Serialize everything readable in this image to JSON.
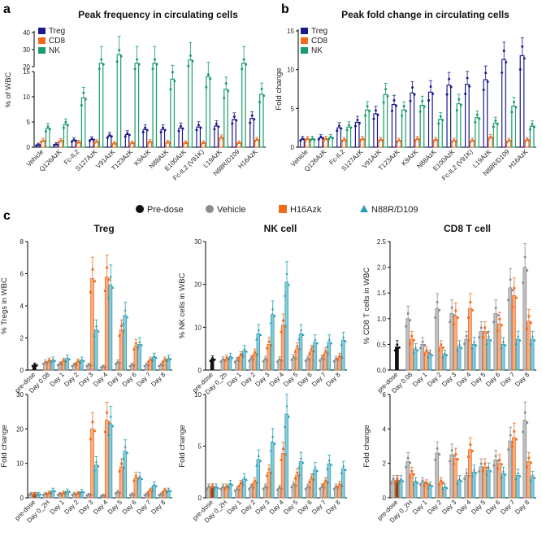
{
  "colors": {
    "treg": "#1a1a8c",
    "cd8": "#f26b1d",
    "nk": "#1a9c6b",
    "predose": "#111111",
    "vehicle": "#8c8c8c",
    "h16": "#f26b1d",
    "n88": "#2a9fb8"
  },
  "chart_data": [
    {
      "id": "a",
      "type": "bar",
      "panel_label": "a",
      "title": "Peak frequency in circulating cells",
      "ylabel": "% of WBC",
      "categories": [
        "Vehicle",
        "Q126AzK",
        "Fc-IL2",
        "S127AzK",
        "V91AzK",
        "T123AzK",
        "K9AzK",
        "N88AzK",
        "E100AzK",
        "Fc-IL2 (V91K)",
        "L19AzK",
        "N88R/D109",
        "H16AzK"
      ],
      "legend": [
        "Treg",
        "CD8",
        "NK"
      ],
      "y_axis_broken": true,
      "ylim_lower": [
        0,
        15
      ],
      "ylim_upper": [
        20,
        40
      ],
      "yticks_lower": [
        0,
        5,
        10,
        15
      ],
      "yticks_upper": [
        20,
        30,
        40
      ],
      "series": [
        {
          "name": "Treg",
          "values": [
            0.4,
            0.5,
            1.3,
            1.5,
            2.2,
            2.5,
            3.5,
            3.5,
            3.8,
            4.0,
            4.2,
            5.5,
            5.7
          ]
        },
        {
          "name": "CD8",
          "values": [
            1.2,
            1.2,
            0.9,
            1.0,
            0.7,
            0.8,
            1.0,
            0.9,
            0.8,
            0.8,
            1.8,
            0.8,
            1.4
          ]
        },
        {
          "name": "NK",
          "values": [
            3.7,
            4.5,
            9.8,
            22,
            27,
            22,
            22,
            13.5,
            24,
            14,
            11.5,
            22,
            10.5
          ]
        }
      ]
    },
    {
      "id": "b",
      "type": "bar",
      "panel_label": "b",
      "title": "Peak fold change in circulating cells",
      "ylabel": "Fold change",
      "categories": [
        "Vehicle",
        "Q126AzK",
        "Fc-IL2",
        "S127AzK",
        "V91AzK",
        "T123AzK",
        "K9AzK",
        "N88AzK",
        "E100AzK",
        "Fc-IL2 (V91K)",
        "L19AzK",
        "N88R/D109",
        "H16AzK"
      ],
      "legend": [
        "Treg",
        "CD8",
        "NK"
      ],
      "ylim": [
        0,
        15
      ],
      "yticks": [
        0,
        5,
        10,
        15
      ],
      "series": [
        {
          "name": "Treg",
          "values": [
            1.0,
            1.2,
            2.5,
            3.2,
            4.3,
            5.5,
            7.0,
            7.1,
            8.0,
            8.1,
            8.7,
            11.3,
            11.8
          ]
        },
        {
          "name": "CD8",
          "values": [
            1.0,
            1.0,
            0.9,
            1.0,
            0.9,
            0.8,
            1.0,
            0.9,
            0.8,
            0.8,
            1.2,
            0.8,
            0.9
          ]
        },
        {
          "name": "NK",
          "values": [
            1.0,
            1.2,
            2.6,
            4.8,
            6.8,
            4.8,
            5.4,
            3.6,
            5.6,
            3.8,
            3.1,
            5.3,
            2.7
          ]
        }
      ]
    },
    {
      "id": "c1",
      "type": "bar",
      "panel_label": "c",
      "title": "Treg",
      "ylabel": "% Tregs in WBC",
      "categories": [
        "pre-dose",
        "Day 0.08",
        "Day 1",
        "Day 2",
        "Day 3",
        "Day 4",
        "Day 5",
        "Day 6",
        "Day 7",
        "Day 8"
      ],
      "ylim": [
        0,
        8
      ],
      "yticks": [
        0,
        2,
        4,
        6,
        8
      ],
      "series": [
        {
          "name": "Pre-dose",
          "values": [
            0.3,
            null,
            null,
            null,
            null,
            null,
            null,
            null,
            null,
            null
          ]
        },
        {
          "name": "Vehicle",
          "values": [
            null,
            0.45,
            0.35,
            0.3,
            0.3,
            0.2,
            0.45,
            0.3,
            0.3,
            0.3
          ]
        },
        {
          "name": "H16Azk",
          "values": [
            null,
            0.55,
            0.55,
            0.5,
            5.7,
            5.8,
            2.5,
            1.5,
            0.6,
            0.6
          ]
        },
        {
          "name": "N88R/D109",
          "values": [
            null,
            0.6,
            0.7,
            0.6,
            2.5,
            5.3,
            3.4,
            1.6,
            0.8,
            0.7
          ]
        }
      ]
    },
    {
      "id": "c2",
      "type": "bar",
      "panel_label": "",
      "title": "NK cell",
      "ylabel": "% NK cells in WBC",
      "categories": [
        "pre-dose",
        "Day 0_2h",
        "Day 1",
        "Day 2",
        "Day 3",
        "Day 4",
        "Day 5",
        "Day 6",
        "Day 7",
        "Day 8"
      ],
      "ylim": [
        0,
        30
      ],
      "yticks": [
        0,
        10,
        20,
        30
      ],
      "series": [
        {
          "name": "Pre-dose",
          "values": [
            2.5,
            null,
            null,
            null,
            null,
            null,
            null,
            null,
            null,
            null
          ]
        },
        {
          "name": "Vehicle",
          "values": [
            null,
            2.3,
            2.2,
            2.5,
            2.4,
            2.3,
            2.8,
            2.5,
            2.6,
            2.4
          ]
        },
        {
          "name": "H16Azk",
          "values": [
            null,
            2.6,
            3.3,
            3.8,
            6.0,
            10.5,
            5.0,
            4.5,
            4.0,
            3.0
          ]
        },
        {
          "name": "N88R/D109",
          "values": [
            null,
            3.0,
            4.5,
            8.5,
            13.0,
            20.5,
            8.5,
            6.5,
            6.5,
            7.0
          ]
        }
      ]
    },
    {
      "id": "c3",
      "type": "bar",
      "panel_label": "",
      "title": "CD8 T cell",
      "ylabel": "% CD8 T cells in WBC",
      "categories": [
        "pre-dose",
        "Day 0.08",
        "Day 1",
        "Day 2",
        "Day 3",
        "Day 4",
        "Day 5",
        "Day 6",
        "Day 7",
        "Day 8"
      ],
      "ylim": [
        0,
        2.5
      ],
      "yticks": [
        0.0,
        0.5,
        1.0,
        1.5,
        2.0,
        2.5
      ],
      "series": [
        {
          "name": "Pre-dose",
          "values": [
            0.45,
            null,
            null,
            null,
            null,
            null,
            null,
            null,
            null,
            null
          ]
        },
        {
          "name": "Vehicle",
          "values": [
            null,
            1.0,
            0.5,
            1.2,
            1.1,
            0.6,
            0.75,
            1.1,
            1.6,
            2.0
          ]
        },
        {
          "name": "H16Azk",
          "values": [
            null,
            0.6,
            0.35,
            0.45,
            1.05,
            1.2,
            0.75,
            0.9,
            1.45,
            0.95
          ]
        },
        {
          "name": "N88R/D109",
          "values": [
            null,
            0.4,
            0.3,
            0.3,
            0.45,
            0.5,
            0.6,
            0.5,
            0.6,
            0.6
          ]
        }
      ]
    },
    {
      "id": "c4",
      "type": "bar",
      "panel_label": "",
      "title": "",
      "ylabel": "Fold change",
      "categories": [
        "pre-dose",
        "Day 0_2H",
        "Day 1",
        "Day 2",
        "Day 3",
        "Day 4",
        "Day 5",
        "Day 6",
        "Day 7",
        "Day 8"
      ],
      "ylim": [
        0,
        30
      ],
      "yticks": [
        0,
        10,
        20,
        30
      ],
      "series": [
        {
          "name": "Pre-dose",
          "values": [
            1.0,
            null,
            null,
            null,
            null,
            null,
            null,
            null,
            null,
            null
          ]
        },
        {
          "name": "Vehicle",
          "values": [
            1.0,
            1.0,
            1.0,
            1.0,
            0.8,
            0.6,
            1.5,
            0.9,
            0.9,
            0.9
          ]
        },
        {
          "name": "H16Azk",
          "values": [
            1.0,
            1.3,
            1.3,
            1.2,
            20.0,
            22.5,
            9.0,
            5.8,
            2.0,
            2.0
          ]
        },
        {
          "name": "N88R/D109",
          "values": [
            1.0,
            2.0,
            1.8,
            1.7,
            9.5,
            21.5,
            13.5,
            5.7,
            3.5,
            2.0
          ]
        }
      ]
    },
    {
      "id": "c5",
      "type": "bar",
      "panel_label": "",
      "title": "",
      "ylabel": "Fold change",
      "categories": [
        "pre-dose",
        "Day 0_2H",
        "Day 1",
        "Day 2",
        "Day 3",
        "Day 4",
        "Day 5",
        "Day 6",
        "Day 7",
        "Day 8"
      ],
      "ylim": [
        0,
        10
      ],
      "yticks": [
        0,
        5,
        10
      ],
      "series": [
        {
          "name": "Pre-dose",
          "values": [
            1.0,
            null,
            null,
            null,
            null,
            null,
            null,
            null,
            null,
            null
          ]
        },
        {
          "name": "Vehicle",
          "values": [
            1.0,
            1.0,
            0.8,
            1.0,
            1.0,
            0.9,
            1.2,
            1.0,
            1.0,
            1.0
          ]
        },
        {
          "name": "H16Azk",
          "values": [
            1.0,
            1.0,
            1.3,
            1.5,
            2.5,
            4.3,
            2.2,
            1.8,
            1.5,
            1.2
          ]
        },
        {
          "name": "N88R/D109",
          "values": [
            1.0,
            1.3,
            1.8,
            3.7,
            5.4,
            8.1,
            3.5,
            2.7,
            3.3,
            2.8
          ]
        }
      ]
    },
    {
      "id": "c6",
      "type": "bar",
      "panel_label": "",
      "title": "",
      "ylabel": "Fold change",
      "categories": [
        "pre-dose",
        "Day 0_2H",
        "Day 1",
        "Day 2",
        "Day 3",
        "Day 4",
        "Day 5",
        "Day 6",
        "Day 7",
        "Day 8"
      ],
      "ylim": [
        0,
        6
      ],
      "yticks": [
        0,
        2,
        4,
        6
      ],
      "series": [
        {
          "name": "Pre-dose",
          "values": [
            1.0,
            null,
            null,
            null,
            null,
            null,
            null,
            null,
            null,
            null
          ]
        },
        {
          "name": "Vehicle",
          "values": [
            1.0,
            2.1,
            0.9,
            2.6,
            2.5,
            1.3,
            1.8,
            2.2,
            3.3,
            4.5
          ]
        },
        {
          "name": "H16Azk",
          "values": [
            1.0,
            1.4,
            0.8,
            0.9,
            2.3,
            2.8,
            1.8,
            2.0,
            3.5,
            2.1
          ]
        },
        {
          "name": "N88R/D109",
          "values": [
            1.0,
            0.9,
            0.7,
            0.6,
            1.0,
            1.5,
            1.6,
            1.4,
            1.3,
            1.2
          ]
        }
      ]
    }
  ],
  "legend_c": [
    "Pre-dose",
    "Vehicle",
    "H16Azk",
    "N88R/D109"
  ]
}
